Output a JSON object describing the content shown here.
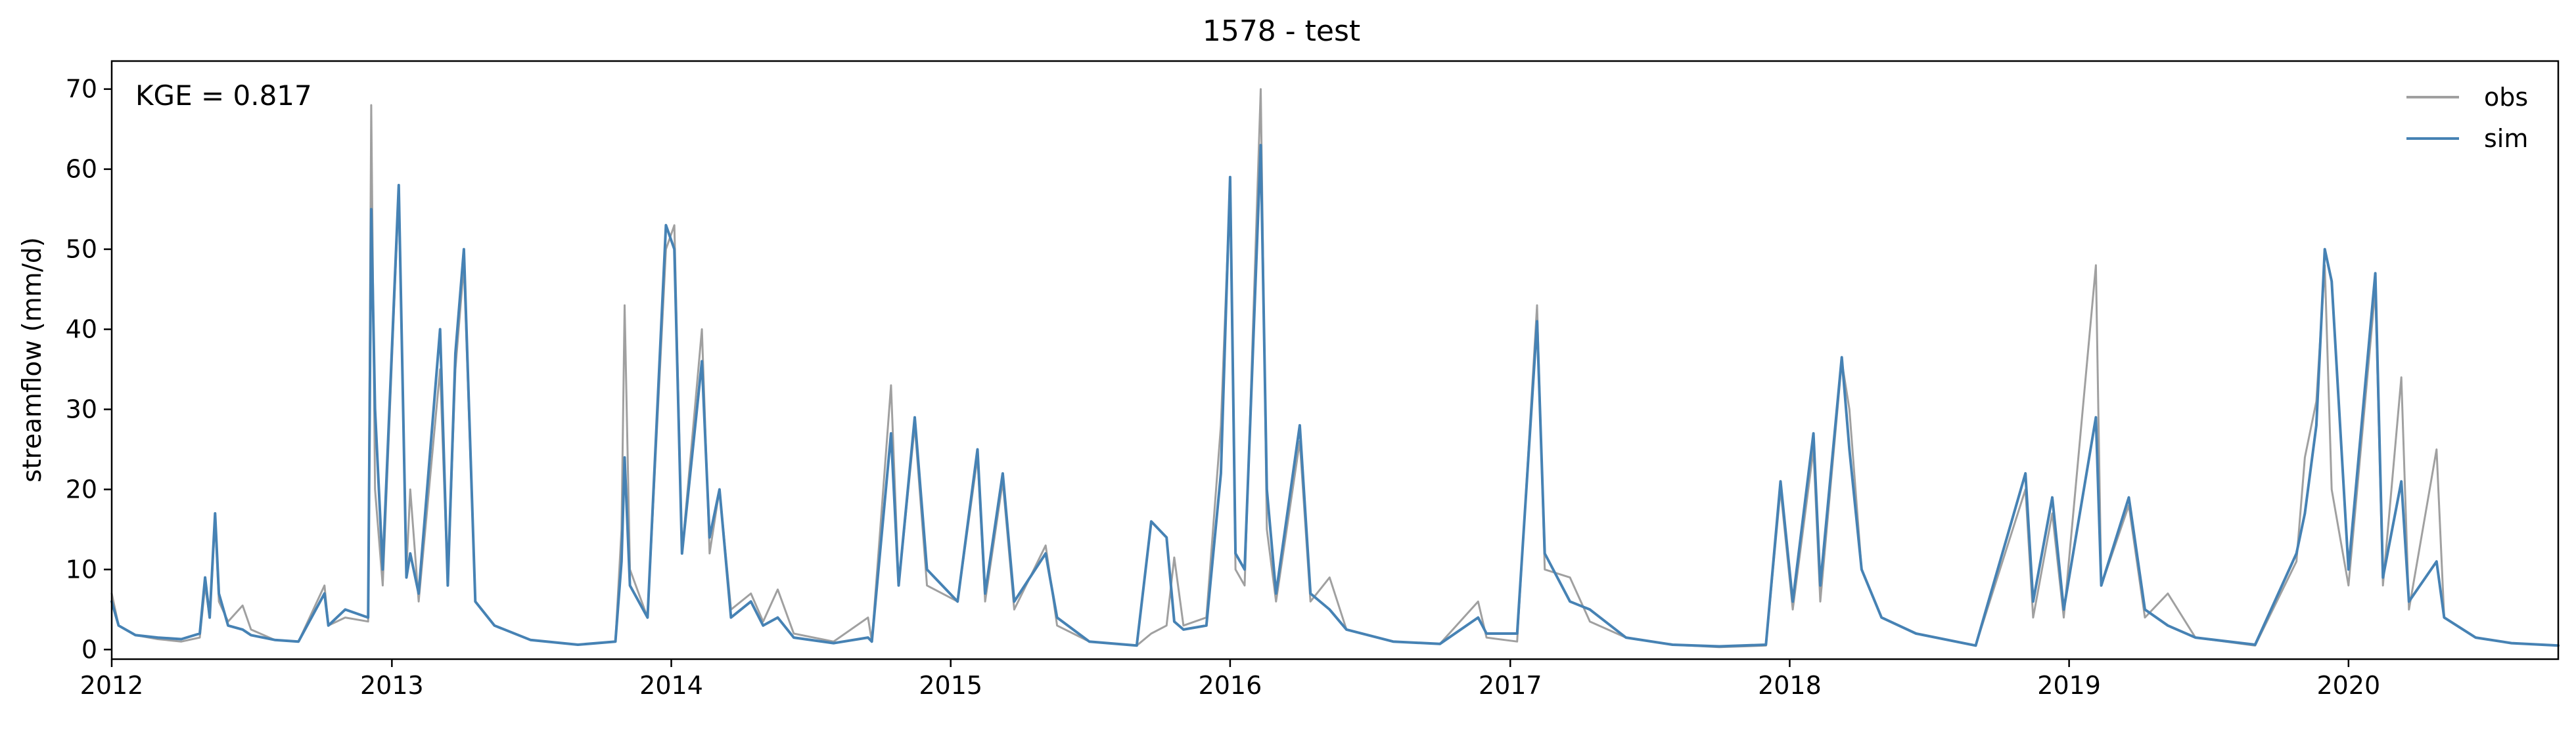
{
  "chart_data": {
    "type": "line",
    "title": "1578 - test",
    "xlabel": "",
    "ylabel": "streamflow (mm/d)",
    "annotation": "KGE = 0.817",
    "xlim": [
      "2012-01-01",
      "2020-10-01"
    ],
    "ylim": [
      -1.2,
      73.5
    ],
    "x_ticks": [
      "2012-01-01",
      "2013-01-01",
      "2014-01-01",
      "2015-01-01",
      "2016-01-01",
      "2017-01-01",
      "2018-01-01",
      "2019-01-01",
      "2020-01-01"
    ],
    "x_tick_labels": [
      "2012",
      "2013",
      "2014",
      "2015",
      "2016",
      "2017",
      "2018",
      "2019",
      "2020"
    ],
    "y_ticks": [
      0,
      10,
      20,
      30,
      40,
      50,
      60,
      70
    ],
    "y_tick_labels": [
      "0",
      "10",
      "20",
      "30",
      "40",
      "50",
      "60",
      "70"
    ],
    "grid": false,
    "legend_position": "top-right",
    "series": [
      {
        "name": "obs",
        "color": "#a0a0a0",
        "points": [
          [
            "2012-01-01",
            7.0
          ],
          [
            "2012-01-10",
            3.0
          ],
          [
            "2012-02-01",
            1.8
          ],
          [
            "2012-03-01",
            1.3
          ],
          [
            "2012-04-01",
            1.0
          ],
          [
            "2012-04-25",
            1.5
          ],
          [
            "2012-05-02",
            8.0
          ],
          [
            "2012-05-08",
            4.0
          ],
          [
            "2012-05-15",
            16.0
          ],
          [
            "2012-05-20",
            6.0
          ],
          [
            "2012-06-01",
            3.5
          ],
          [
            "2012-06-20",
            5.5
          ],
          [
            "2012-07-01",
            2.5
          ],
          [
            "2012-08-01",
            1.2
          ],
          [
            "2012-09-01",
            1.0
          ],
          [
            "2012-10-05",
            8.0
          ],
          [
            "2012-10-10",
            3.0
          ],
          [
            "2012-11-01",
            4.0
          ],
          [
            "2012-12-01",
            3.5
          ],
          [
            "2012-12-05",
            68.0
          ],
          [
            "2012-12-10",
            20.0
          ],
          [
            "2012-12-20",
            8.0
          ],
          [
            "2013-01-10",
            57.0
          ],
          [
            "2013-01-20",
            10.0
          ],
          [
            "2013-01-25",
            20.0
          ],
          [
            "2013-02-05",
            6.0
          ],
          [
            "2013-03-05",
            35.0
          ],
          [
            "2013-03-15",
            8.0
          ],
          [
            "2013-03-25",
            35.0
          ],
          [
            "2013-04-05",
            48.0
          ],
          [
            "2013-04-20",
            6.0
          ],
          [
            "2013-05-15",
            3.0
          ],
          [
            "2013-07-01",
            1.2
          ],
          [
            "2013-09-01",
            0.6
          ],
          [
            "2013-10-20",
            1.0
          ],
          [
            "2013-10-28",
            15.0
          ],
          [
            "2013-11-01",
            43.0
          ],
          [
            "2013-11-08",
            10.0
          ],
          [
            "2013-12-01",
            4.0
          ],
          [
            "2013-12-25",
            50.0
          ],
          [
            "2014-01-05",
            53.0
          ],
          [
            "2014-01-15",
            12.0
          ],
          [
            "2014-02-10",
            40.0
          ],
          [
            "2014-02-20",
            12.0
          ],
          [
            "2014-03-05",
            20.0
          ],
          [
            "2014-03-20",
            5.0
          ],
          [
            "2014-04-15",
            7.0
          ],
          [
            "2014-05-01",
            3.5
          ],
          [
            "2014-05-20",
            7.5
          ],
          [
            "2014-06-10",
            2.0
          ],
          [
            "2014-08-01",
            1.0
          ],
          [
            "2014-09-15",
            4.0
          ],
          [
            "2014-09-20",
            1.0
          ],
          [
            "2014-10-15",
            33.0
          ],
          [
            "2014-10-25",
            8.0
          ],
          [
            "2014-11-15",
            28.0
          ],
          [
            "2014-12-01",
            8.0
          ],
          [
            "2015-01-10",
            6.0
          ],
          [
            "2015-02-05",
            24.0
          ],
          [
            "2015-02-15",
            6.0
          ],
          [
            "2015-03-10",
            21.0
          ],
          [
            "2015-03-25",
            5.0
          ],
          [
            "2015-05-05",
            13.0
          ],
          [
            "2015-05-20",
            3.0
          ],
          [
            "2015-07-01",
            1.0
          ],
          [
            "2015-09-01",
            0.5
          ],
          [
            "2015-09-20",
            2.0
          ],
          [
            "2015-10-10",
            3.0
          ],
          [
            "2015-10-20",
            11.5
          ],
          [
            "2015-11-01",
            3.0
          ],
          [
            "2015-12-01",
            4.0
          ],
          [
            "2015-12-20",
            28.0
          ],
          [
            "2016-01-01",
            58.0
          ],
          [
            "2016-01-08",
            10.0
          ],
          [
            "2016-01-20",
            8.0
          ],
          [
            "2016-02-10",
            70.0
          ],
          [
            "2016-02-18",
            15.0
          ],
          [
            "2016-03-01",
            6.0
          ],
          [
            "2016-04-01",
            26.0
          ],
          [
            "2016-04-15",
            6.0
          ],
          [
            "2016-05-10",
            9.0
          ],
          [
            "2016-06-01",
            2.5
          ],
          [
            "2016-08-01",
            1.0
          ],
          [
            "2016-10-01",
            0.7
          ],
          [
            "2016-11-20",
            6.0
          ],
          [
            "2016-12-01",
            1.5
          ],
          [
            "2017-01-10",
            1.0
          ],
          [
            "2017-02-05",
            43.0
          ],
          [
            "2017-02-15",
            10.0
          ],
          [
            "2017-03-20",
            9.0
          ],
          [
            "2017-04-15",
            3.5
          ],
          [
            "2017-06-01",
            1.5
          ],
          [
            "2017-08-01",
            0.6
          ],
          [
            "2017-10-01",
            0.3
          ],
          [
            "2017-12-01",
            0.5
          ],
          [
            "2017-12-20",
            20.0
          ],
          [
            "2018-01-05",
            5.0
          ],
          [
            "2018-02-01",
            25.0
          ],
          [
            "2018-02-10",
            6.0
          ],
          [
            "2018-03-10",
            36.0
          ],
          [
            "2018-03-20",
            30.0
          ],
          [
            "2018-04-05",
            10.0
          ],
          [
            "2018-05-01",
            4.0
          ],
          [
            "2018-06-15",
            2.0
          ],
          [
            "2018-09-01",
            0.5
          ],
          [
            "2018-11-05",
            20.0
          ],
          [
            "2018-11-15",
            4.0
          ],
          [
            "2018-12-10",
            17.0
          ],
          [
            "2018-12-25",
            4.0
          ],
          [
            "2019-02-05",
            48.0
          ],
          [
            "2019-02-12",
            8.0
          ],
          [
            "2019-03-20",
            18.0
          ],
          [
            "2019-04-10",
            4.0
          ],
          [
            "2019-05-10",
            7.0
          ],
          [
            "2019-06-15",
            1.5
          ],
          [
            "2019-09-01",
            0.5
          ],
          [
            "2019-10-25",
            11.0
          ],
          [
            "2019-11-05",
            24.0
          ],
          [
            "2019-11-20",
            31.0
          ],
          [
            "2019-12-01",
            48.0
          ],
          [
            "2019-12-10",
            20.0
          ],
          [
            "2020-01-01",
            8.0
          ],
          [
            "2020-02-05",
            45.0
          ],
          [
            "2020-02-15",
            8.0
          ],
          [
            "2020-03-10",
            34.0
          ],
          [
            "2020-03-20",
            5.0
          ],
          [
            "2020-04-25",
            25.0
          ],
          [
            "2020-05-05",
            4.0
          ],
          [
            "2020-06-15",
            1.5
          ],
          [
            "2020-08-01",
            0.8
          ],
          [
            "2020-10-01",
            0.5
          ]
        ]
      },
      {
        "name": "sim",
        "color": "#4682b4",
        "points": [
          [
            "2012-01-01",
            6.0
          ],
          [
            "2012-01-10",
            3.0
          ],
          [
            "2012-02-01",
            1.8
          ],
          [
            "2012-03-01",
            1.5
          ],
          [
            "2012-04-01",
            1.3
          ],
          [
            "2012-04-25",
            2.0
          ],
          [
            "2012-05-02",
            9.0
          ],
          [
            "2012-05-08",
            4.0
          ],
          [
            "2012-05-15",
            17.0
          ],
          [
            "2012-05-20",
            7.0
          ],
          [
            "2012-06-01",
            3.0
          ],
          [
            "2012-06-20",
            2.5
          ],
          [
            "2012-07-01",
            1.8
          ],
          [
            "2012-08-01",
            1.2
          ],
          [
            "2012-09-01",
            1.0
          ],
          [
            "2012-10-05",
            7.0
          ],
          [
            "2012-10-10",
            3.0
          ],
          [
            "2012-11-01",
            5.0
          ],
          [
            "2012-12-01",
            4.0
          ],
          [
            "2012-12-05",
            55.0
          ],
          [
            "2012-12-10",
            30.0
          ],
          [
            "2012-12-20",
            10.0
          ],
          [
            "2013-01-10",
            58.0
          ],
          [
            "2013-01-20",
            9.0
          ],
          [
            "2013-01-25",
            12.0
          ],
          [
            "2013-02-05",
            7.0
          ],
          [
            "2013-03-05",
            40.0
          ],
          [
            "2013-03-15",
            8.0
          ],
          [
            "2013-03-25",
            37.0
          ],
          [
            "2013-04-05",
            50.0
          ],
          [
            "2013-04-20",
            6.0
          ],
          [
            "2013-05-15",
            3.0
          ],
          [
            "2013-07-01",
            1.2
          ],
          [
            "2013-09-01",
            0.6
          ],
          [
            "2013-10-20",
            1.0
          ],
          [
            "2013-10-28",
            11.0
          ],
          [
            "2013-11-01",
            24.0
          ],
          [
            "2013-11-08",
            8.0
          ],
          [
            "2013-12-01",
            4.0
          ],
          [
            "2013-12-25",
            53.0
          ],
          [
            "2014-01-05",
            50.0
          ],
          [
            "2014-01-15",
            12.0
          ],
          [
            "2014-02-10",
            36.0
          ],
          [
            "2014-02-20",
            14.0
          ],
          [
            "2014-03-05",
            20.0
          ],
          [
            "2014-03-20",
            4.0
          ],
          [
            "2014-04-15",
            6.0
          ],
          [
            "2014-05-01",
            3.0
          ],
          [
            "2014-05-20",
            4.0
          ],
          [
            "2014-06-10",
            1.5
          ],
          [
            "2014-08-01",
            0.8
          ],
          [
            "2014-09-15",
            1.5
          ],
          [
            "2014-09-20",
            1.0
          ],
          [
            "2014-10-15",
            27.0
          ],
          [
            "2014-10-25",
            8.0
          ],
          [
            "2014-11-15",
            29.0
          ],
          [
            "2014-12-01",
            10.0
          ],
          [
            "2015-01-10",
            6.0
          ],
          [
            "2015-02-05",
            25.0
          ],
          [
            "2015-02-15",
            7.0
          ],
          [
            "2015-03-10",
            22.0
          ],
          [
            "2015-03-25",
            6.0
          ],
          [
            "2015-05-05",
            12.0
          ],
          [
            "2015-05-20",
            4.0
          ],
          [
            "2015-07-01",
            1.0
          ],
          [
            "2015-09-01",
            0.5
          ],
          [
            "2015-09-20",
            16.0
          ],
          [
            "2015-10-10",
            14.0
          ],
          [
            "2015-10-20",
            3.5
          ],
          [
            "2015-11-01",
            2.5
          ],
          [
            "2015-12-01",
            3.0
          ],
          [
            "2015-12-20",
            22.0
          ],
          [
            "2016-01-01",
            59.0
          ],
          [
            "2016-01-08",
            12.0
          ],
          [
            "2016-01-20",
            10.0
          ],
          [
            "2016-02-10",
            63.0
          ],
          [
            "2016-02-18",
            20.0
          ],
          [
            "2016-03-01",
            7.0
          ],
          [
            "2016-04-01",
            28.0
          ],
          [
            "2016-04-15",
            7.0
          ],
          [
            "2016-05-10",
            5.0
          ],
          [
            "2016-06-01",
            2.5
          ],
          [
            "2016-08-01",
            1.0
          ],
          [
            "2016-10-01",
            0.7
          ],
          [
            "2016-11-20",
            4.0
          ],
          [
            "2016-12-01",
            2.0
          ],
          [
            "2017-01-10",
            2.0
          ],
          [
            "2017-02-05",
            41.0
          ],
          [
            "2017-02-15",
            12.0
          ],
          [
            "2017-03-20",
            6.0
          ],
          [
            "2017-04-15",
            5.0
          ],
          [
            "2017-06-01",
            1.5
          ],
          [
            "2017-08-01",
            0.6
          ],
          [
            "2017-10-01",
            0.4
          ],
          [
            "2017-12-01",
            0.6
          ],
          [
            "2017-12-20",
            21.0
          ],
          [
            "2018-01-05",
            6.0
          ],
          [
            "2018-02-01",
            27.0
          ],
          [
            "2018-02-10",
            8.0
          ],
          [
            "2018-03-10",
            36.5
          ],
          [
            "2018-03-20",
            25.0
          ],
          [
            "2018-04-05",
            10.0
          ],
          [
            "2018-05-01",
            4.0
          ],
          [
            "2018-06-15",
            2.0
          ],
          [
            "2018-09-01",
            0.5
          ],
          [
            "2018-11-05",
            22.0
          ],
          [
            "2018-11-15",
            6.0
          ],
          [
            "2018-12-10",
            19.0
          ],
          [
            "2018-12-25",
            5.0
          ],
          [
            "2019-02-05",
            29.0
          ],
          [
            "2019-02-12",
            8.0
          ],
          [
            "2019-03-20",
            19.0
          ],
          [
            "2019-04-10",
            5.0
          ],
          [
            "2019-05-10",
            3.0
          ],
          [
            "2019-06-15",
            1.5
          ],
          [
            "2019-09-01",
            0.6
          ],
          [
            "2019-10-25",
            12.0
          ],
          [
            "2019-11-05",
            17.0
          ],
          [
            "2019-11-20",
            28.0
          ],
          [
            "2019-12-01",
            50.0
          ],
          [
            "2019-12-10",
            46.0
          ],
          [
            "2020-01-01",
            10.0
          ],
          [
            "2020-02-05",
            47.0
          ],
          [
            "2020-02-15",
            9.0
          ],
          [
            "2020-03-10",
            21.0
          ],
          [
            "2020-03-20",
            6.0
          ],
          [
            "2020-04-25",
            11.0
          ],
          [
            "2020-05-05",
            4.0
          ],
          [
            "2020-06-15",
            1.5
          ],
          [
            "2020-08-01",
            0.8
          ],
          [
            "2020-10-01",
            0.5
          ]
        ]
      }
    ]
  }
}
